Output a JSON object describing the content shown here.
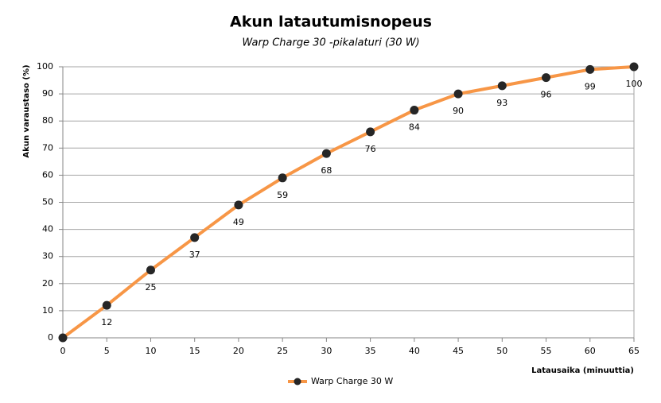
{
  "chart_data": {
    "type": "line",
    "title": "Akun latautumisnopeus",
    "subtitle": "Warp Charge 30 -pikalaturi (30 W)",
    "x_label": "Latausaika  (minuuttia)",
    "y_label": "Akun varaustaso  (%)",
    "x": [
      0,
      5,
      10,
      15,
      20,
      25,
      30,
      35,
      40,
      45,
      50,
      55,
      60,
      65
    ],
    "series": [
      {
        "name": "Warp Charge 30 W",
        "color": "#f79646",
        "marker_color": "#262626",
        "values": [
          0,
          12,
          25,
          37,
          49,
          59,
          68,
          76,
          84,
          90,
          93,
          96,
          99,
          100
        ],
        "value_labels": [
          null,
          "12",
          "25",
          "37",
          "49",
          "59",
          "68",
          "76",
          "84",
          "90",
          "93",
          "96",
          "99",
          "100"
        ]
      }
    ],
    "xlim": [
      0,
      65
    ],
    "xticks": [
      0,
      5,
      10,
      15,
      20,
      25,
      30,
      35,
      40,
      45,
      50,
      55,
      60,
      65
    ],
    "ylim": [
      0,
      100
    ],
    "yticks": [
      0,
      10,
      20,
      30,
      40,
      50,
      60,
      70,
      80,
      90,
      100
    ],
    "grid": true,
    "legend": "bottom"
  }
}
